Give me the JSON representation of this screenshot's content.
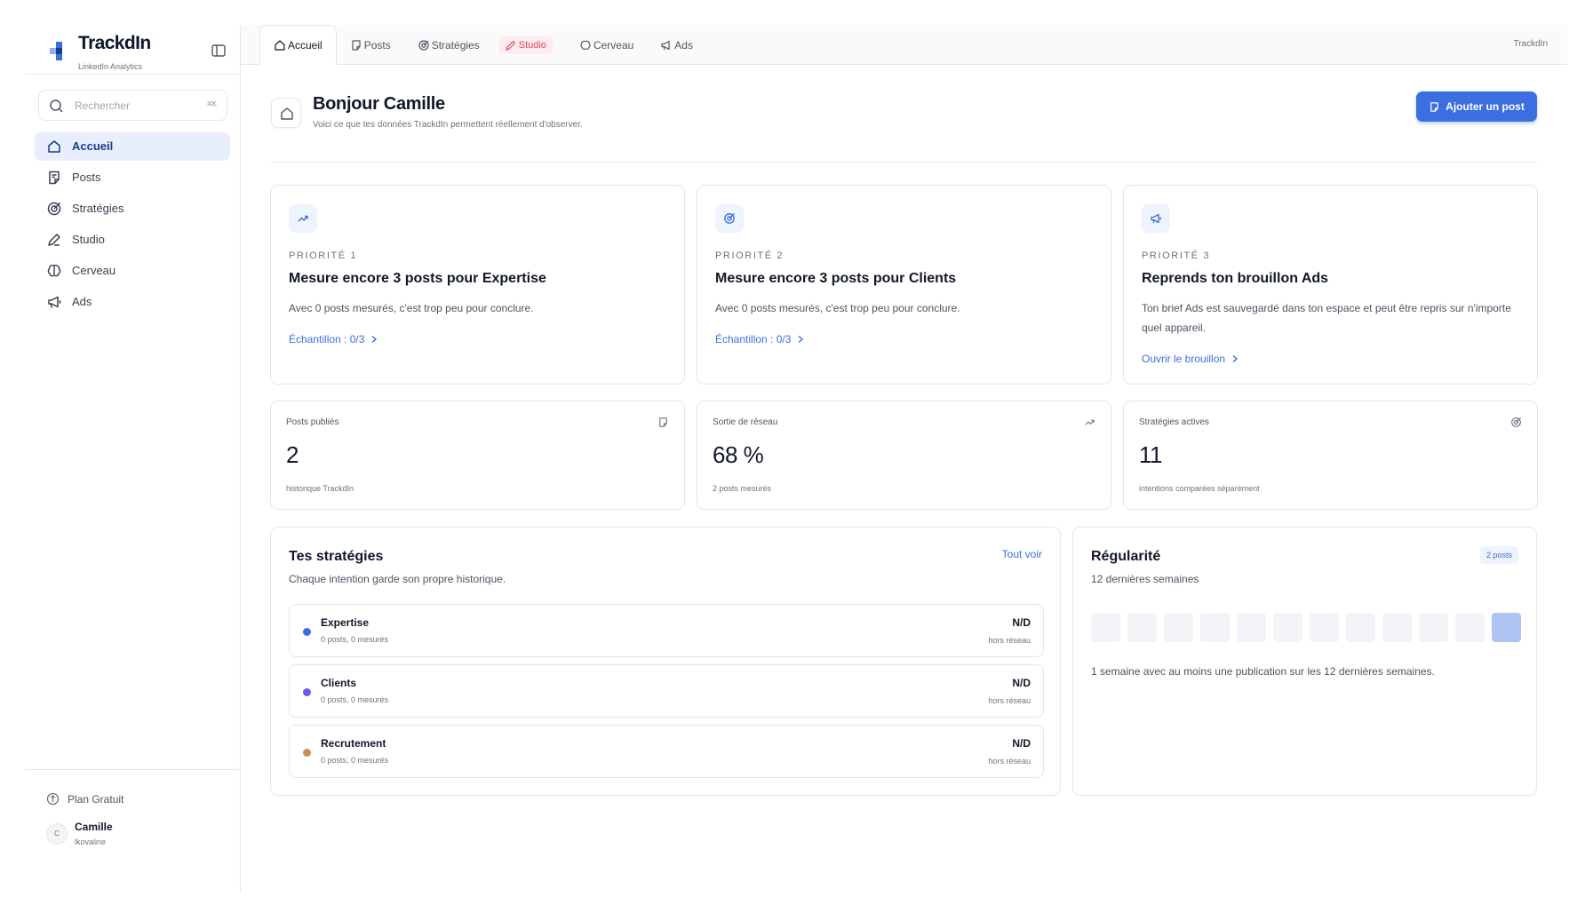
{
  "brand": {
    "name": "TrackdIn",
    "subtitle": "LinkedIn Analytics"
  },
  "search": {
    "placeholder": "Rechercher",
    "shortcut": "⌘K"
  },
  "sidebar": {
    "items": [
      {
        "label": "Accueil",
        "icon": "home-icon",
        "active": true
      },
      {
        "label": "Posts",
        "icon": "note-icon"
      },
      {
        "label": "Stratégies",
        "icon": "target-icon"
      },
      {
        "label": "Studio",
        "icon": "pen-icon"
      },
      {
        "label": "Cerveau",
        "icon": "brain-icon"
      },
      {
        "label": "Ads",
        "icon": "megaphone-icon"
      }
    ],
    "plan": "Plan Gratuit",
    "user": {
      "initial": "C",
      "name": "Camille",
      "handle": "lkovaline"
    }
  },
  "topbar": {
    "tabs": [
      {
        "label": "Accueil",
        "icon": "home-icon",
        "active": true
      },
      {
        "label": "Posts",
        "icon": "note-icon"
      },
      {
        "label": "Stratégies",
        "icon": "target-icon"
      },
      {
        "label": "Studio",
        "icon": "pen-icon",
        "highlight": true
      },
      {
        "label": "Cerveau",
        "icon": "brain-icon"
      },
      {
        "label": "Ads",
        "icon": "megaphone-icon"
      }
    ],
    "right_label": "TrackdIn"
  },
  "header": {
    "title": "Bonjour Camille",
    "subtitle": "Voici ce que tes données TrackdIn permettent réellement d'observer.",
    "add_button": "Ajouter un post"
  },
  "priorities": [
    {
      "kicker": "PRIORITÉ 1",
      "title": "Mesure encore 3 posts pour Expertise",
      "body": "Avec 0 posts mesurés, c'est trop peu pour conclure.",
      "link": "Échantillon : 0/3",
      "icon": "trend-up-icon"
    },
    {
      "kicker": "PRIORITÉ 2",
      "title": "Mesure encore 3 posts pour Clients",
      "body": "Avec 0 posts mesurés, c'est trop peu pour conclure.",
      "link": "Échantillon : 0/3",
      "icon": "target-icon"
    },
    {
      "kicker": "PRIORITÉ 3",
      "title": "Reprends ton brouillon Ads",
      "body": "Ton brief Ads est sauvegardé dans ton espace et peut être repris sur n'importe quel appareil.",
      "link": "Ouvrir le brouillon",
      "icon": "megaphone-icon"
    }
  ],
  "stats": [
    {
      "label": "Posts publiés",
      "value": "2",
      "sub": "historique TrackdIn",
      "icon": "note-icon"
    },
    {
      "label": "Sortie de réseau",
      "value": "68 %",
      "sub": "2 posts mesurés",
      "icon": "trend-up-icon"
    },
    {
      "label": "Stratégies actives",
      "value": "11",
      "sub": "intentions comparées séparément",
      "icon": "target-icon"
    }
  ],
  "strategies": {
    "title": "Tes stratégies",
    "subtitle": "Chaque intention garde son propre historique.",
    "see_all": "Tout voir",
    "rows": [
      {
        "name": "Expertise",
        "meta": "0 posts, 0 mesurés",
        "value": "N/D",
        "value_sub": "hors réseau",
        "color": "#3b6fe0"
      },
      {
        "name": "Clients",
        "meta": "0 posts, 0 mesurés",
        "value": "N/D",
        "value_sub": "hors réseau",
        "color": "#6d5ae6"
      },
      {
        "name": "Recrutement",
        "meta": "0 posts, 0 mesurés",
        "value": "N/D",
        "value_sub": "hors réseau",
        "color": "#c8905a"
      }
    ]
  },
  "regularity": {
    "title": "Régularité",
    "subtitle": "12 dernières semaines",
    "badge": "2 posts",
    "weeks_active": [
      false,
      false,
      false,
      false,
      false,
      false,
      false,
      false,
      false,
      false,
      false,
      true
    ],
    "note": "1 semaine avec au moins une publication sur les 12 dernières semaines."
  },
  "colors": {
    "accent": "#3b6fe0",
    "studio": "#e0475d"
  }
}
